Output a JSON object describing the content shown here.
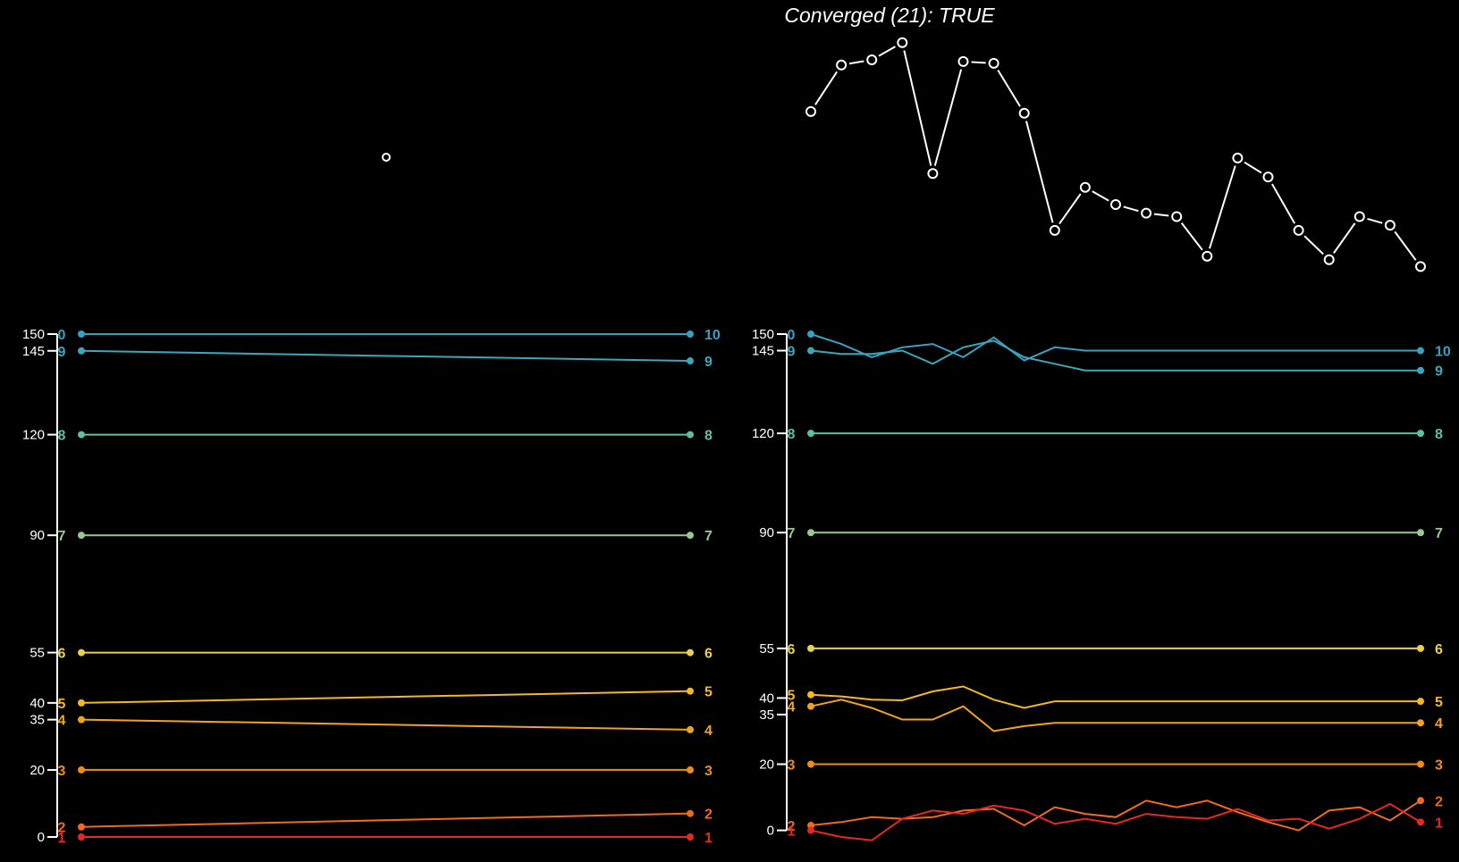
{
  "title": "Converged (21): TRUE",
  "colors": {
    "background": "#000000",
    "axis": "#ffffff",
    "series": {
      "0": "#3a9fc0",
      "1": "#e8281e",
      "2": "#f06a1c",
      "3": "#f08c1e",
      "4": "#f0a41e",
      "5": "#f5b820",
      "6": "#e8d050",
      "7": "#9ac892",
      "8": "#5fc0a0",
      "9": "#3aa8b8",
      "10": "#3a9fc0"
    }
  },
  "chart_data": [
    {
      "type": "scatter",
      "panel": "top-left",
      "x": [
        1
      ],
      "y": [
        0
      ],
      "title": "",
      "xlabel": "",
      "ylabel": ""
    },
    {
      "type": "line",
      "panel": "top-right",
      "title": "Converged (21): TRUE",
      "x": [
        1,
        2,
        3,
        4,
        5,
        6,
        7,
        8,
        9,
        10,
        11,
        12,
        13,
        14,
        15,
        16,
        17,
        18,
        19,
        20,
        21
      ],
      "y": [
        0.78,
        0.915,
        0.93,
        0.98,
        0.6,
        0.925,
        0.92,
        0.775,
        0.435,
        0.56,
        0.51,
        0.485,
        0.475,
        0.36,
        0.645,
        0.59,
        0.435,
        0.35,
        0.475,
        0.45,
        0.33
      ],
      "ylim": [
        0.3,
        1.0
      ],
      "xlabel": "",
      "ylabel": ""
    },
    {
      "type": "line",
      "panel": "bottom-left",
      "ylim": [
        0,
        150
      ],
      "yticks": [
        0,
        20,
        35,
        40,
        55,
        90,
        120,
        145,
        150
      ],
      "ytick_labels": [
        "0",
        "20",
        "35",
        "40",
        "55",
        "90",
        "120",
        "145",
        "150"
      ],
      "x": [
        0,
        1
      ],
      "series": [
        {
          "label": "0",
          "end_label": "10",
          "values": [
            150,
            150
          ]
        },
        {
          "label": "9",
          "end_label": "9",
          "values": [
            145,
            142
          ]
        },
        {
          "label": "8",
          "end_label": "8",
          "values": [
            120,
            120
          ]
        },
        {
          "label": "7",
          "end_label": "7",
          "values": [
            90,
            90
          ]
        },
        {
          "label": "6",
          "end_label": "6",
          "values": [
            55,
            55
          ]
        },
        {
          "label": "5",
          "end_label": "5",
          "values": [
            40,
            43.5
          ]
        },
        {
          "label": "4",
          "end_label": "4",
          "values": [
            35,
            32
          ]
        },
        {
          "label": "3",
          "end_label": "3",
          "values": [
            20,
            20
          ]
        },
        {
          "label": "2",
          "end_label": "2",
          "values": [
            3,
            7
          ]
        },
        {
          "label": "1",
          "end_label": "1",
          "values": [
            0,
            0
          ]
        }
      ]
    },
    {
      "type": "line",
      "panel": "bottom-right",
      "ylim": [
        -2,
        150
      ],
      "yticks": [
        0,
        20,
        35,
        40,
        55,
        90,
        120,
        145,
        150
      ],
      "ytick_labels": [
        "0",
        "20",
        "35",
        "40",
        "55",
        "90",
        "120",
        "145",
        "150"
      ],
      "x": [
        1,
        2,
        3,
        4,
        5,
        6,
        7,
        8,
        9,
        10,
        11,
        12,
        13,
        14,
        15,
        16,
        17,
        18,
        19,
        20,
        21
      ],
      "series": [
        {
          "label": "0",
          "end_label": "10",
          "values": [
            150,
            147,
            143,
            146,
            147,
            143,
            149,
            142,
            146,
            145,
            145,
            145,
            145,
            145,
            145,
            145,
            145,
            145,
            145,
            145,
            145
          ]
        },
        {
          "label": "9",
          "end_label": "9",
          "values": [
            145,
            144,
            144,
            145,
            141,
            146,
            148,
            143,
            141,
            139,
            139,
            139,
            139,
            139,
            139,
            139,
            139,
            139,
            139,
            139,
            139
          ]
        },
        {
          "label": "8",
          "end_label": "8",
          "values": [
            120,
            120,
            120,
            120,
            120,
            120,
            120,
            120,
            120,
            120,
            120,
            120,
            120,
            120,
            120,
            120,
            120,
            120,
            120,
            120,
            120
          ]
        },
        {
          "label": "7",
          "end_label": "7",
          "values": [
            90,
            90,
            90,
            90,
            90,
            90,
            90,
            90,
            90,
            90,
            90,
            90,
            90,
            90,
            90,
            90,
            90,
            90,
            90,
            90,
            90
          ]
        },
        {
          "label": "6",
          "end_label": "6",
          "values": [
            55,
            55,
            55,
            55,
            55,
            55,
            55,
            55,
            55,
            55,
            55,
            55,
            55,
            55,
            55,
            55,
            55,
            55,
            55,
            55,
            55
          ]
        },
        {
          "label": "5",
          "end_label": "5",
          "values": [
            41,
            40.5,
            39.5,
            39.3,
            42,
            43.5,
            39.5,
            37,
            39,
            39,
            39,
            39,
            39,
            39,
            39,
            39,
            39,
            39,
            39,
            39,
            39
          ]
        },
        {
          "label": "4",
          "end_label": "4",
          "values": [
            37.5,
            39.5,
            37,
            33.5,
            33.5,
            37.5,
            30,
            31.5,
            32.5,
            32.5,
            32.5,
            32.5,
            32.5,
            32.5,
            32.5,
            32.5,
            32.5,
            32.5,
            32.5,
            32.5,
            32.5
          ]
        },
        {
          "label": "3",
          "end_label": "3",
          "values": [
            20,
            20,
            20,
            20,
            20,
            20,
            20,
            20,
            20,
            20,
            20,
            20,
            20,
            20,
            20,
            20,
            20,
            20,
            20,
            20,
            20
          ]
        },
        {
          "label": "2",
          "end_label": "2",
          "values": [
            1.5,
            2.5,
            4,
            3.5,
            4,
            6,
            6.5,
            1.5,
            7,
            5,
            4,
            9,
            7,
            9,
            5.5,
            2.5,
            0,
            6,
            7,
            3,
            9
          ]
        },
        {
          "label": "1",
          "end_label": "1",
          "values": [
            0,
            -2,
            -3,
            3.5,
            6,
            5,
            7.5,
            6,
            2,
            3.5,
            2,
            5,
            4,
            3.5,
            6.5,
            3,
            3.5,
            0.5,
            3.5,
            8,
            2.5
          ]
        }
      ]
    }
  ]
}
